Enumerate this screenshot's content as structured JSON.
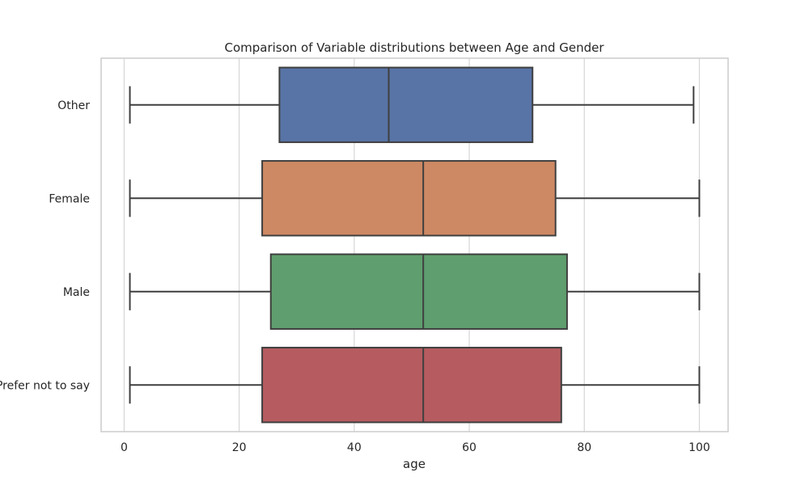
{
  "chart_data": {
    "type": "boxplot",
    "title": "Comparison of Variable distributions between Age and Gender",
    "xlabel": "age",
    "ylabel": "",
    "xlim": [
      -4,
      105
    ],
    "xticks": [
      0,
      20,
      40,
      60,
      80,
      100
    ],
    "grid": true,
    "categories": [
      "Other",
      "Female",
      "Male",
      "Prefer not to say"
    ],
    "colors": [
      "#5874a6",
      "#cd8963",
      "#5f9e6e",
      "#b65c60"
    ],
    "boxes": [
      {
        "label": "Other",
        "min": 1,
        "q1": 27,
        "median": 46,
        "q3": 71,
        "max": 99
      },
      {
        "label": "Female",
        "min": 1,
        "q1": 24,
        "median": 52,
        "q3": 75,
        "max": 100
      },
      {
        "label": "Male",
        "min": 1,
        "q1": 25.5,
        "median": 52,
        "q3": 77,
        "max": 100
      },
      {
        "label": "Prefer not to say",
        "min": 1,
        "q1": 24,
        "median": 52,
        "q3": 76,
        "max": 100
      }
    ]
  }
}
